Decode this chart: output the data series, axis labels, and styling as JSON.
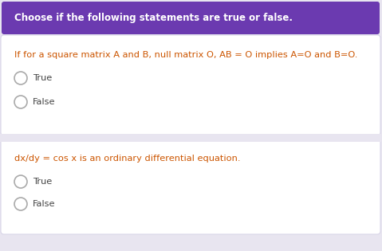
{
  "header_text": "Choose if the following statements are true or false.",
  "header_bg": "#6b3ab0",
  "header_text_color": "#ffffff",
  "outer_bg": "#e8e5f0",
  "card_bg": "#ffffff",
  "card_border": "#d8d5e8",
  "question1_text": "If for a square matrix A and B, null matrix O, AB = O implies A=O and B=O.",
  "question2_text": "dx/dy = cos x is an ordinary differential equation.",
  "question_color": "#cc5500",
  "option_text_color": "#444444",
  "circle_edge_color": "#aaaaaa",
  "true_label": "True",
  "false_label": "False",
  "header_fontsize": 8.5,
  "question_fontsize": 8.2,
  "option_fontsize": 8.2,
  "fig_width": 4.79,
  "fig_height": 3.15,
  "dpi": 100
}
